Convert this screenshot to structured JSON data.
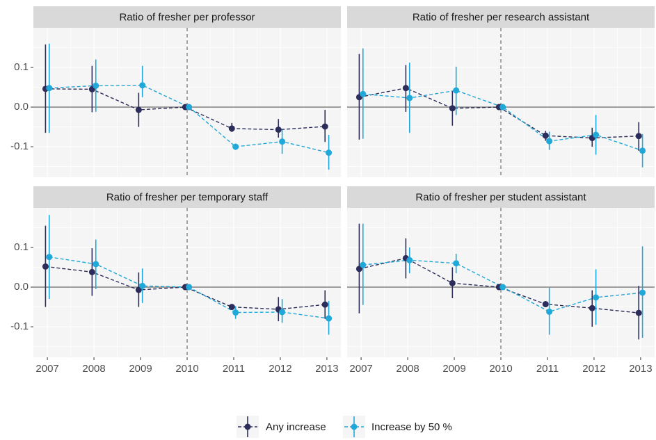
{
  "chart_data": [
    {
      "type": "line",
      "title": "Ratio of fresher per professor",
      "x": [
        2007,
        2008,
        2009,
        2010,
        2011,
        2012,
        2013
      ],
      "series": [
        {
          "name": "Any increase",
          "color": "#2c2d5b",
          "values": [
            0.046,
            0.045,
            -0.007,
            0,
            -0.054,
            -0.057,
            -0.049
          ],
          "ci_low": [
            -0.065,
            -0.013,
            -0.05,
            0,
            -0.063,
            -0.077,
            -0.088
          ],
          "ci_high": [
            0.158,
            0.104,
            0.036,
            0,
            -0.04,
            -0.03,
            -0.007
          ]
        },
        {
          "name": "Increase by 50 %",
          "color": "#1fa8d8",
          "values": [
            0.048,
            0.054,
            0.055,
            0,
            -0.1,
            -0.087,
            -0.115
          ],
          "ci_low": [
            -0.065,
            -0.012,
            0.025,
            0,
            -0.108,
            -0.118,
            -0.158
          ],
          "ci_high": [
            0.16,
            0.12,
            0.104,
            0,
            -0.092,
            -0.057,
            -0.07
          ]
        }
      ],
      "xlim": [
        2006.7,
        2013.3
      ],
      "xticks": [
        2007,
        2008,
        2009,
        2010,
        2011,
        2012,
        2013
      ],
      "ylim": [
        -0.177,
        0.2
      ],
      "yticks": [
        -0.1,
        {
          "value": 0,
          "label": "0.0"
        },
        0.1
      ],
      "vline": 2010,
      "hline": 0,
      "grid": true
    },
    {
      "type": "line",
      "title": "Ratio of fresher per research assistant",
      "x": [
        2007,
        2008,
        2009,
        2010,
        2011,
        2012,
        2013
      ],
      "series": [
        {
          "color": "#2c2d5b",
          "values": [
            0.025,
            0.048,
            -0.003,
            0,
            -0.072,
            -0.078,
            -0.073
          ],
          "ci_low": [
            -0.082,
            -0.012,
            -0.047,
            0,
            -0.085,
            -0.1,
            -0.11
          ],
          "ci_high": [
            0.134,
            0.106,
            0.04,
            0,
            -0.06,
            -0.052,
            -0.038
          ]
        },
        {
          "color": "#1fa8d8",
          "values": [
            0.033,
            0.023,
            0.042,
            0,
            -0.086,
            -0.07,
            -0.11
          ],
          "ci_low": [
            -0.08,
            -0.065,
            -0.02,
            0,
            -0.108,
            -0.12,
            -0.152
          ],
          "ci_high": [
            0.148,
            0.112,
            0.102,
            0,
            -0.062,
            -0.02,
            -0.068
          ]
        }
      ],
      "xlim": [
        2006.7,
        2013.3
      ],
      "xticks": [
        2007,
        2008,
        2009,
        2010,
        2011,
        2012,
        2013
      ],
      "ylim": [
        -0.177,
        0.2
      ],
      "yticks": [
        -0.1,
        0,
        0.1
      ],
      "vline": 2010,
      "hline": 0,
      "grid": true
    },
    {
      "type": "line",
      "title": "Ratio of fresher per temporary staff",
      "x": [
        2007,
        2008,
        2009,
        2010,
        2011,
        2012,
        2013
      ],
      "series": [
        {
          "color": "#2c2d5b",
          "values": [
            0.052,
            0.038,
            -0.007,
            0,
            -0.05,
            -0.056,
            -0.044
          ],
          "ci_low": [
            -0.05,
            -0.022,
            -0.05,
            0,
            -0.055,
            -0.086,
            -0.08
          ],
          "ci_high": [
            0.155,
            0.098,
            0.037,
            0,
            -0.045,
            -0.025,
            -0.008
          ]
        },
        {
          "color": "#1fa8d8",
          "values": [
            0.076,
            0.058,
            0.003,
            0,
            -0.064,
            -0.063,
            -0.079
          ],
          "ci_low": [
            -0.03,
            -0.005,
            -0.04,
            0,
            -0.08,
            -0.09,
            -0.12
          ],
          "ci_high": [
            0.182,
            0.12,
            0.047,
            0,
            -0.048,
            -0.03,
            -0.035
          ]
        }
      ],
      "xlim": [
        2006.7,
        2013.3
      ],
      "xticks": [
        2007,
        2008,
        2009,
        2010,
        2011,
        2012,
        2013
      ],
      "ylim": [
        -0.177,
        0.2
      ],
      "yticks": [
        -0.1,
        {
          "value": 0,
          "label": "0.0"
        },
        0.1
      ],
      "vline": 2010,
      "hline": 0,
      "grid": true
    },
    {
      "type": "line",
      "title": "Ratio of fresher per student assistant",
      "x": [
        2007,
        2008,
        2009,
        2010,
        2011,
        2012,
        2013
      ],
      "series": [
        {
          "color": "#2c2d5b",
          "values": [
            0.046,
            0.073,
            0.01,
            0,
            -0.043,
            -0.053,
            -0.065
          ],
          "ci_low": [
            -0.066,
            0.022,
            -0.028,
            0,
            -0.05,
            -0.1,
            -0.132
          ],
          "ci_high": [
            0.16,
            0.123,
            0.05,
            0,
            -0.035,
            -0.008,
            0.003
          ]
        },
        {
          "color": "#1fa8d8",
          "values": [
            0.056,
            0.068,
            0.06,
            0,
            -0.062,
            -0.026,
            -0.014
          ],
          "ci_low": [
            -0.045,
            0.035,
            0.035,
            0,
            -0.12,
            -0.095,
            -0.128
          ],
          "ci_high": [
            0.16,
            0.1,
            0.084,
            0,
            -0.002,
            0.045,
            0.103
          ]
        }
      ],
      "xlim": [
        2006.7,
        2013.3
      ],
      "xticks": [
        2007,
        2008,
        2009,
        2010,
        2011,
        2012,
        2013
      ],
      "ylim": [
        -0.177,
        0.2
      ],
      "yticks": [
        -0.1,
        0,
        0.1
      ],
      "vline": 2010,
      "hline": 0,
      "grid": true
    }
  ]
}
